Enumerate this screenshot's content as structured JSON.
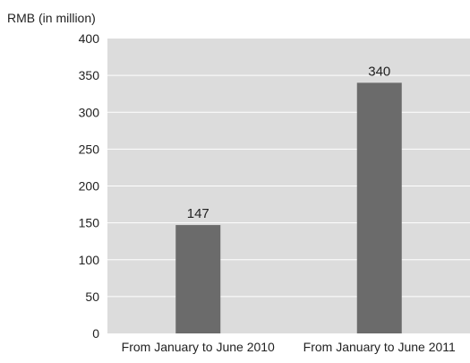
{
  "chart_data": {
    "type": "bar",
    "title": "",
    "xlabel": "",
    "ylabel": "RMB (in million)",
    "categories": [
      "From January to June 2010",
      "From January to June 2011"
    ],
    "values": [
      147,
      340
    ],
    "data_labels": [
      "147",
      "340"
    ],
    "ylim": [
      0,
      400
    ],
    "yticks": [
      0,
      50,
      100,
      150,
      200,
      250,
      300,
      350,
      400
    ],
    "grid": true,
    "legend": "none",
    "colors": {
      "bar": "#6b6b6b",
      "plot_background": "#dcdcdc",
      "gridline": "#ffffff",
      "text": "#222222"
    }
  }
}
